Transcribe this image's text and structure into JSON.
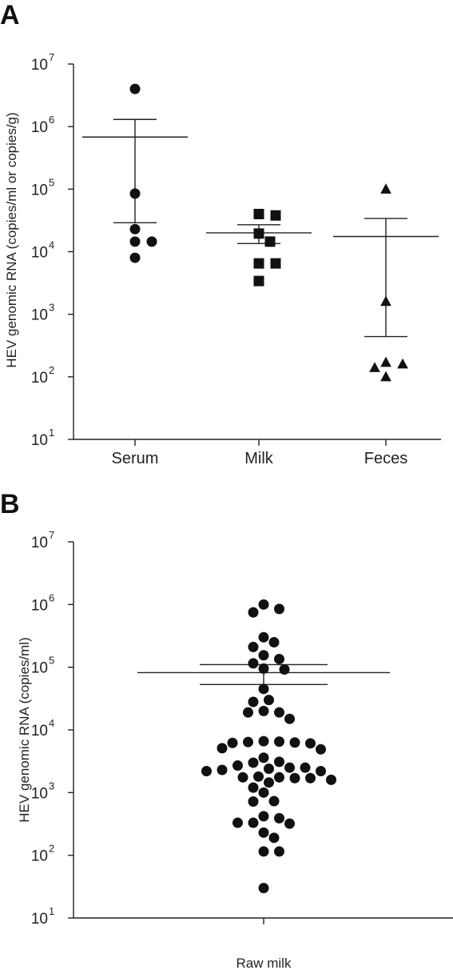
{
  "figure": {
    "panels": [
      {
        "letter": "A",
        "ylabel": "HEV genomic RNA (copies/ml or copies/g)",
        "categories": [
          "Serum",
          "Milk",
          "Feces"
        ]
      },
      {
        "letter": "B",
        "ylabel": "HEV genomic RNA (copies/ml)",
        "categories": [
          "Raw milk"
        ]
      }
    ]
  },
  "chart_data": [
    {
      "panel": "A",
      "type": "scatter",
      "yscale": "log",
      "ylim": [
        10,
        10000000
      ],
      "yticks": [
        {
          "base": "10",
          "exp": "1"
        },
        {
          "base": "10",
          "exp": "2"
        },
        {
          "base": "10",
          "exp": "3"
        },
        {
          "base": "10",
          "exp": "4"
        },
        {
          "base": "10",
          "exp": "5"
        },
        {
          "base": "10",
          "exp": "6"
        },
        {
          "base": "10",
          "exp": "7"
        }
      ],
      "ylabel": "HEV genomic RNA (copies/ml or copies/g)",
      "categories": [
        "Serum",
        "Milk",
        "Feces"
      ],
      "series": [
        {
          "category": "Serum",
          "marker": "circle",
          "values": [
            4000000,
            85000,
            23000,
            14500,
            14500,
            8000
          ],
          "mean": 680000,
          "err_upper": 1300000,
          "err_lower": 29000
        },
        {
          "category": "Milk",
          "marker": "square",
          "values": [
            40000,
            38000,
            19500,
            14500,
            6500,
            6500,
            3400
          ],
          "mean": 20000,
          "err_upper": 27000,
          "err_lower": 13500
        },
        {
          "category": "Feces",
          "marker": "triangle",
          "values": [
            100000,
            1600,
            170,
            160,
            140,
            100
          ],
          "mean": 17500,
          "err_upper": 34000,
          "err_lower": 440
        }
      ]
    },
    {
      "panel": "B",
      "type": "scatter",
      "yscale": "log",
      "ylim": [
        10,
        10000000
      ],
      "yticks": [
        {
          "base": "10",
          "exp": "1"
        },
        {
          "base": "10",
          "exp": "2"
        },
        {
          "base": "10",
          "exp": "3"
        },
        {
          "base": "10",
          "exp": "4"
        },
        {
          "base": "10",
          "exp": "5"
        },
        {
          "base": "10",
          "exp": "6"
        },
        {
          "base": "10",
          "exp": "7"
        }
      ],
      "ylabel": "HEV genomic RNA (copies/ml)",
      "categories": [
        "Raw milk"
      ],
      "series": [
        {
          "category": "Raw milk",
          "marker": "circle",
          "values": [
            1000000,
            850000,
            750000,
            300000,
            250000,
            210000,
            155000,
            135000,
            115000,
            95000,
            92000,
            45000,
            30000,
            28000,
            20000,
            19000,
            19000,
            15000,
            6600,
            6500,
            6400,
            6300,
            6200,
            6100,
            5100,
            4900,
            3600,
            3100,
            3000,
            2700,
            2500,
            2500,
            2400,
            2300,
            2200,
            2200,
            1800,
            1750,
            1750,
            1700,
            1700,
            1600,
            1450,
            1200,
            1000,
            730,
            720,
            420,
            390,
            330,
            330,
            320,
            230,
            190,
            115,
            115,
            30
          ],
          "mean": 82000,
          "err_upper": 110000,
          "err_lower": 53000
        }
      ]
    }
  ]
}
